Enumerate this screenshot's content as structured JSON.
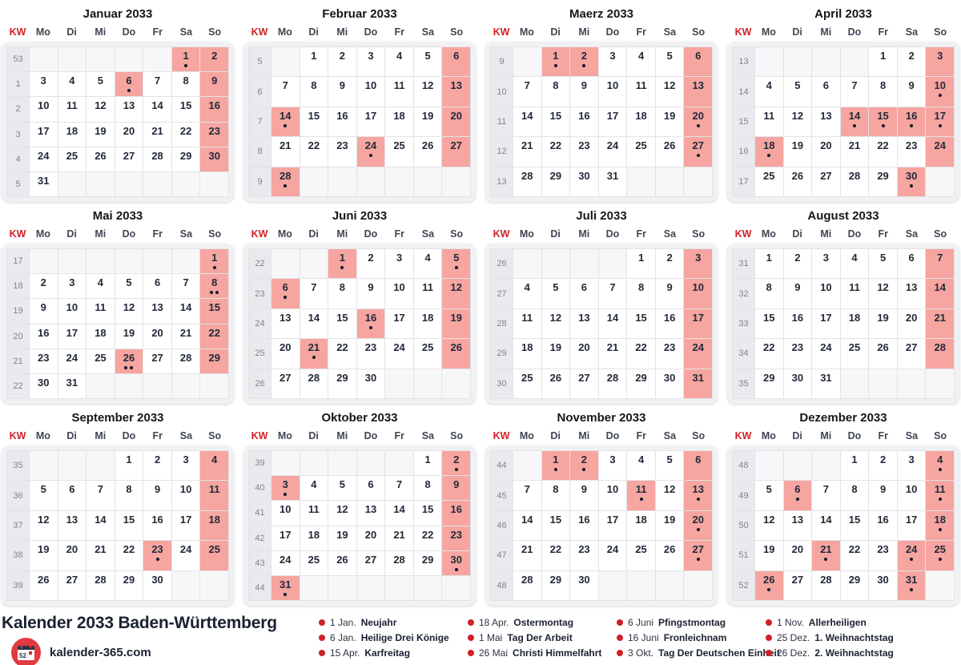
{
  "colors": {
    "hl": "#f6a5a0",
    "red": "#cf2127",
    "line": "#e3e3e7"
  },
  "weekday_headers": [
    "KW",
    "Mo",
    "Di",
    "Mi",
    "Do",
    "Fr",
    "Sa",
    "So"
  ],
  "months": [
    {
      "name": "Januar 2033",
      "weeks": [
        {
          "kw": "53",
          "days": [
            "",
            "",
            "",
            "",
            "",
            "1h1",
            "2h"
          ]
        },
        {
          "kw": "1",
          "days": [
            "3",
            "4",
            "5",
            "6h1",
            "7",
            "8",
            "9h"
          ]
        },
        {
          "kw": "2",
          "days": [
            "10",
            "11",
            "12",
            "13",
            "14",
            "15",
            "16h"
          ]
        },
        {
          "kw": "3",
          "days": [
            "17",
            "18",
            "19",
            "20",
            "21",
            "22",
            "23h"
          ]
        },
        {
          "kw": "4",
          "days": [
            "24",
            "25",
            "26",
            "27",
            "28",
            "29",
            "30h"
          ]
        },
        {
          "kw": "5",
          "days": [
            "31",
            "",
            "",
            "",
            "",
            "",
            ""
          ]
        }
      ]
    },
    {
      "name": "Februar 2033",
      "weeks": [
        {
          "kw": "5",
          "days": [
            "",
            "1",
            "2",
            "3",
            "4",
            "5",
            "6h"
          ]
        },
        {
          "kw": "6",
          "days": [
            "7",
            "8",
            "9",
            "10",
            "11",
            "12",
            "13h"
          ]
        },
        {
          "kw": "7",
          "days": [
            "14h1",
            "15",
            "16",
            "17",
            "18",
            "19",
            "20h"
          ]
        },
        {
          "kw": "8",
          "days": [
            "21",
            "22",
            "23",
            "24h1",
            "25",
            "26",
            "27h"
          ]
        },
        {
          "kw": "9",
          "days": [
            "28h1",
            "",
            "",
            "",
            "",
            "",
            ""
          ]
        }
      ]
    },
    {
      "name": "Maerz 2033",
      "weeks": [
        {
          "kw": "9",
          "days": [
            "",
            "1h1",
            "2h1",
            "3",
            "4",
            "5",
            "6h"
          ]
        },
        {
          "kw": "10",
          "days": [
            "7",
            "8",
            "9",
            "10",
            "11",
            "12",
            "13h"
          ]
        },
        {
          "kw": "11",
          "days": [
            "14",
            "15",
            "16",
            "17",
            "18",
            "19",
            "20h1"
          ]
        },
        {
          "kw": "12",
          "days": [
            "21",
            "22",
            "23",
            "24",
            "25",
            "26",
            "27h1"
          ]
        },
        {
          "kw": "13",
          "days": [
            "28",
            "29",
            "30",
            "31",
            "",
            "",
            ""
          ]
        }
      ]
    },
    {
      "name": "April 2033",
      "weeks": [
        {
          "kw": "13",
          "days": [
            "",
            "",
            "",
            "",
            "1",
            "2",
            "3h"
          ]
        },
        {
          "kw": "14",
          "days": [
            "4",
            "5",
            "6",
            "7",
            "8",
            "9",
            "10h1"
          ]
        },
        {
          "kw": "15",
          "days": [
            "11",
            "12",
            "13",
            "14h1",
            "15h1",
            "16h1",
            "17h1"
          ]
        },
        {
          "kw": "16",
          "days": [
            "18h1",
            "19",
            "20",
            "21",
            "22",
            "23",
            "24h"
          ]
        },
        {
          "kw": "17",
          "days": [
            "25",
            "26",
            "27",
            "28",
            "29",
            "30h1",
            ""
          ]
        }
      ]
    },
    {
      "name": "Mai 2033",
      "weeks": [
        {
          "kw": "17",
          "days": [
            "",
            "",
            "",
            "",
            "",
            "",
            "1h1"
          ]
        },
        {
          "kw": "18",
          "days": [
            "2",
            "3",
            "4",
            "5",
            "6",
            "7",
            "8h2"
          ]
        },
        {
          "kw": "19",
          "days": [
            "9",
            "10",
            "11",
            "12",
            "13",
            "14",
            "15h"
          ]
        },
        {
          "kw": "20",
          "days": [
            "16",
            "17",
            "18",
            "19",
            "20",
            "21",
            "22h"
          ]
        },
        {
          "kw": "21",
          "days": [
            "23",
            "24",
            "25",
            "26h2",
            "27",
            "28",
            "29h"
          ]
        },
        {
          "kw": "22",
          "days": [
            "30",
            "31",
            "",
            "",
            "",
            "",
            ""
          ]
        }
      ]
    },
    {
      "name": "Juni 2033",
      "weeks": [
        {
          "kw": "22",
          "days": [
            "",
            "",
            "1h1",
            "2",
            "3",
            "4",
            "5h1"
          ]
        },
        {
          "kw": "23",
          "days": [
            "6h1",
            "7",
            "8",
            "9",
            "10",
            "11",
            "12h"
          ]
        },
        {
          "kw": "24",
          "days": [
            "13",
            "14",
            "15",
            "16h1",
            "17",
            "18",
            "19h"
          ]
        },
        {
          "kw": "25",
          "days": [
            "20",
            "21h1",
            "22",
            "23",
            "24",
            "25",
            "26h"
          ]
        },
        {
          "kw": "26",
          "days": [
            "27",
            "28",
            "29",
            "30",
            "",
            "",
            ""
          ]
        }
      ]
    },
    {
      "name": "Juli 2033",
      "weeks": [
        {
          "kw": "26",
          "days": [
            "",
            "",
            "",
            "",
            "1",
            "2",
            "3h"
          ]
        },
        {
          "kw": "27",
          "days": [
            "4",
            "5",
            "6",
            "7",
            "8",
            "9",
            "10h"
          ]
        },
        {
          "kw": "28",
          "days": [
            "11",
            "12",
            "13",
            "14",
            "15",
            "16",
            "17h"
          ]
        },
        {
          "kw": "29",
          "days": [
            "18",
            "19",
            "20",
            "21",
            "22",
            "23",
            "24h"
          ]
        },
        {
          "kw": "30",
          "days": [
            "25",
            "26",
            "27",
            "28",
            "29",
            "30",
            "31h"
          ]
        }
      ]
    },
    {
      "name": "August 2033",
      "weeks": [
        {
          "kw": "31",
          "days": [
            "1",
            "2",
            "3",
            "4",
            "5",
            "6",
            "7h"
          ]
        },
        {
          "kw": "32",
          "days": [
            "8",
            "9",
            "10",
            "11",
            "12",
            "13",
            "14h"
          ]
        },
        {
          "kw": "33",
          "days": [
            "15",
            "16",
            "17",
            "18",
            "19",
            "20",
            "21h"
          ]
        },
        {
          "kw": "34",
          "days": [
            "22",
            "23",
            "24",
            "25",
            "26",
            "27",
            "28h"
          ]
        },
        {
          "kw": "35",
          "days": [
            "29",
            "30",
            "31",
            "",
            "",
            "",
            ""
          ]
        }
      ]
    },
    {
      "name": "September 2033",
      "weeks": [
        {
          "kw": "35",
          "days": [
            "",
            "",
            "",
            "1",
            "2",
            "3",
            "4h"
          ]
        },
        {
          "kw": "36",
          "days": [
            "5",
            "6",
            "7",
            "8",
            "9",
            "10",
            "11h"
          ]
        },
        {
          "kw": "37",
          "days": [
            "12",
            "13",
            "14",
            "15",
            "16",
            "17",
            "18h"
          ]
        },
        {
          "kw": "38",
          "days": [
            "19",
            "20",
            "21",
            "22",
            "23h1",
            "24",
            "25h"
          ]
        },
        {
          "kw": "39",
          "days": [
            "26",
            "27",
            "28",
            "29",
            "30",
            "",
            ""
          ]
        }
      ]
    },
    {
      "name": "Oktober 2033",
      "weeks": [
        {
          "kw": "39",
          "days": [
            "",
            "",
            "",
            "",
            "",
            "1",
            "2h1"
          ]
        },
        {
          "kw": "40",
          "days": [
            "3h1",
            "4",
            "5",
            "6",
            "7",
            "8",
            "9h"
          ]
        },
        {
          "kw": "41",
          "days": [
            "10",
            "11",
            "12",
            "13",
            "14",
            "15",
            "16h"
          ]
        },
        {
          "kw": "42",
          "days": [
            "17",
            "18",
            "19",
            "20",
            "21",
            "22",
            "23h"
          ]
        },
        {
          "kw": "43",
          "days": [
            "24",
            "25",
            "26",
            "27",
            "28",
            "29",
            "30h1"
          ]
        },
        {
          "kw": "44",
          "days": [
            "31h1",
            "",
            "",
            "",
            "",
            "",
            ""
          ]
        }
      ]
    },
    {
      "name": "November 2033",
      "weeks": [
        {
          "kw": "44",
          "days": [
            "",
            "1h1",
            "2h1",
            "3",
            "4",
            "5",
            "6h"
          ]
        },
        {
          "kw": "45",
          "days": [
            "7",
            "8",
            "9",
            "10",
            "11h1",
            "12",
            "13h1"
          ]
        },
        {
          "kw": "46",
          "days": [
            "14",
            "15",
            "16",
            "17",
            "18",
            "19",
            "20h1"
          ]
        },
        {
          "kw": "47",
          "days": [
            "21",
            "22",
            "23",
            "24",
            "25",
            "26",
            "27h1"
          ]
        },
        {
          "kw": "48",
          "days": [
            "28",
            "29",
            "30",
            "",
            "",
            "",
            ""
          ]
        }
      ]
    },
    {
      "name": "Dezember 2033",
      "weeks": [
        {
          "kw": "48",
          "days": [
            "",
            "",
            "",
            "1",
            "2",
            "3",
            "4h1"
          ]
        },
        {
          "kw": "49",
          "days": [
            "5",
            "6h1",
            "7",
            "8",
            "9",
            "10",
            "11h1"
          ]
        },
        {
          "kw": "50",
          "days": [
            "12",
            "13",
            "14",
            "15",
            "16",
            "17",
            "18h1"
          ]
        },
        {
          "kw": "51",
          "days": [
            "19",
            "20",
            "21h1",
            "22",
            "23",
            "24h1",
            "25h1"
          ]
        },
        {
          "kw": "52",
          "days": [
            "26h1",
            "27",
            "28",
            "29",
            "30",
            "31h1",
            ""
          ]
        }
      ]
    }
  ],
  "footer": {
    "title": "Kalender 2033 Baden-Württemberg",
    "site": "kalender-365.com",
    "logo_number": "52"
  },
  "legend": [
    {
      "date": "1 Jan.",
      "name": "Neujahr"
    },
    {
      "date": "6 Jan.",
      "name": "Heilige Drei Könige"
    },
    {
      "date": "15 Apr.",
      "name": "Karfreitag"
    },
    {
      "date": "18 Apr.",
      "name": "Ostermontag"
    },
    {
      "date": "1 Mai",
      "name": "Tag Der Arbeit"
    },
    {
      "date": "26 Mai",
      "name": "Christi Himmelfahrt"
    },
    {
      "date": "6 Juni",
      "name": "Pfingstmontag"
    },
    {
      "date": "16 Juni",
      "name": "Fronleichnam"
    },
    {
      "date": "3 Okt.",
      "name": "Tag Der Deutschen Einheit"
    },
    {
      "date": "1 Nov.",
      "name": "Allerheiligen"
    },
    {
      "date": "25 Dez.",
      "name": "1. Weihnachtstag"
    },
    {
      "date": "26 Dez.",
      "name": "2. Weihnachtstag"
    }
  ]
}
